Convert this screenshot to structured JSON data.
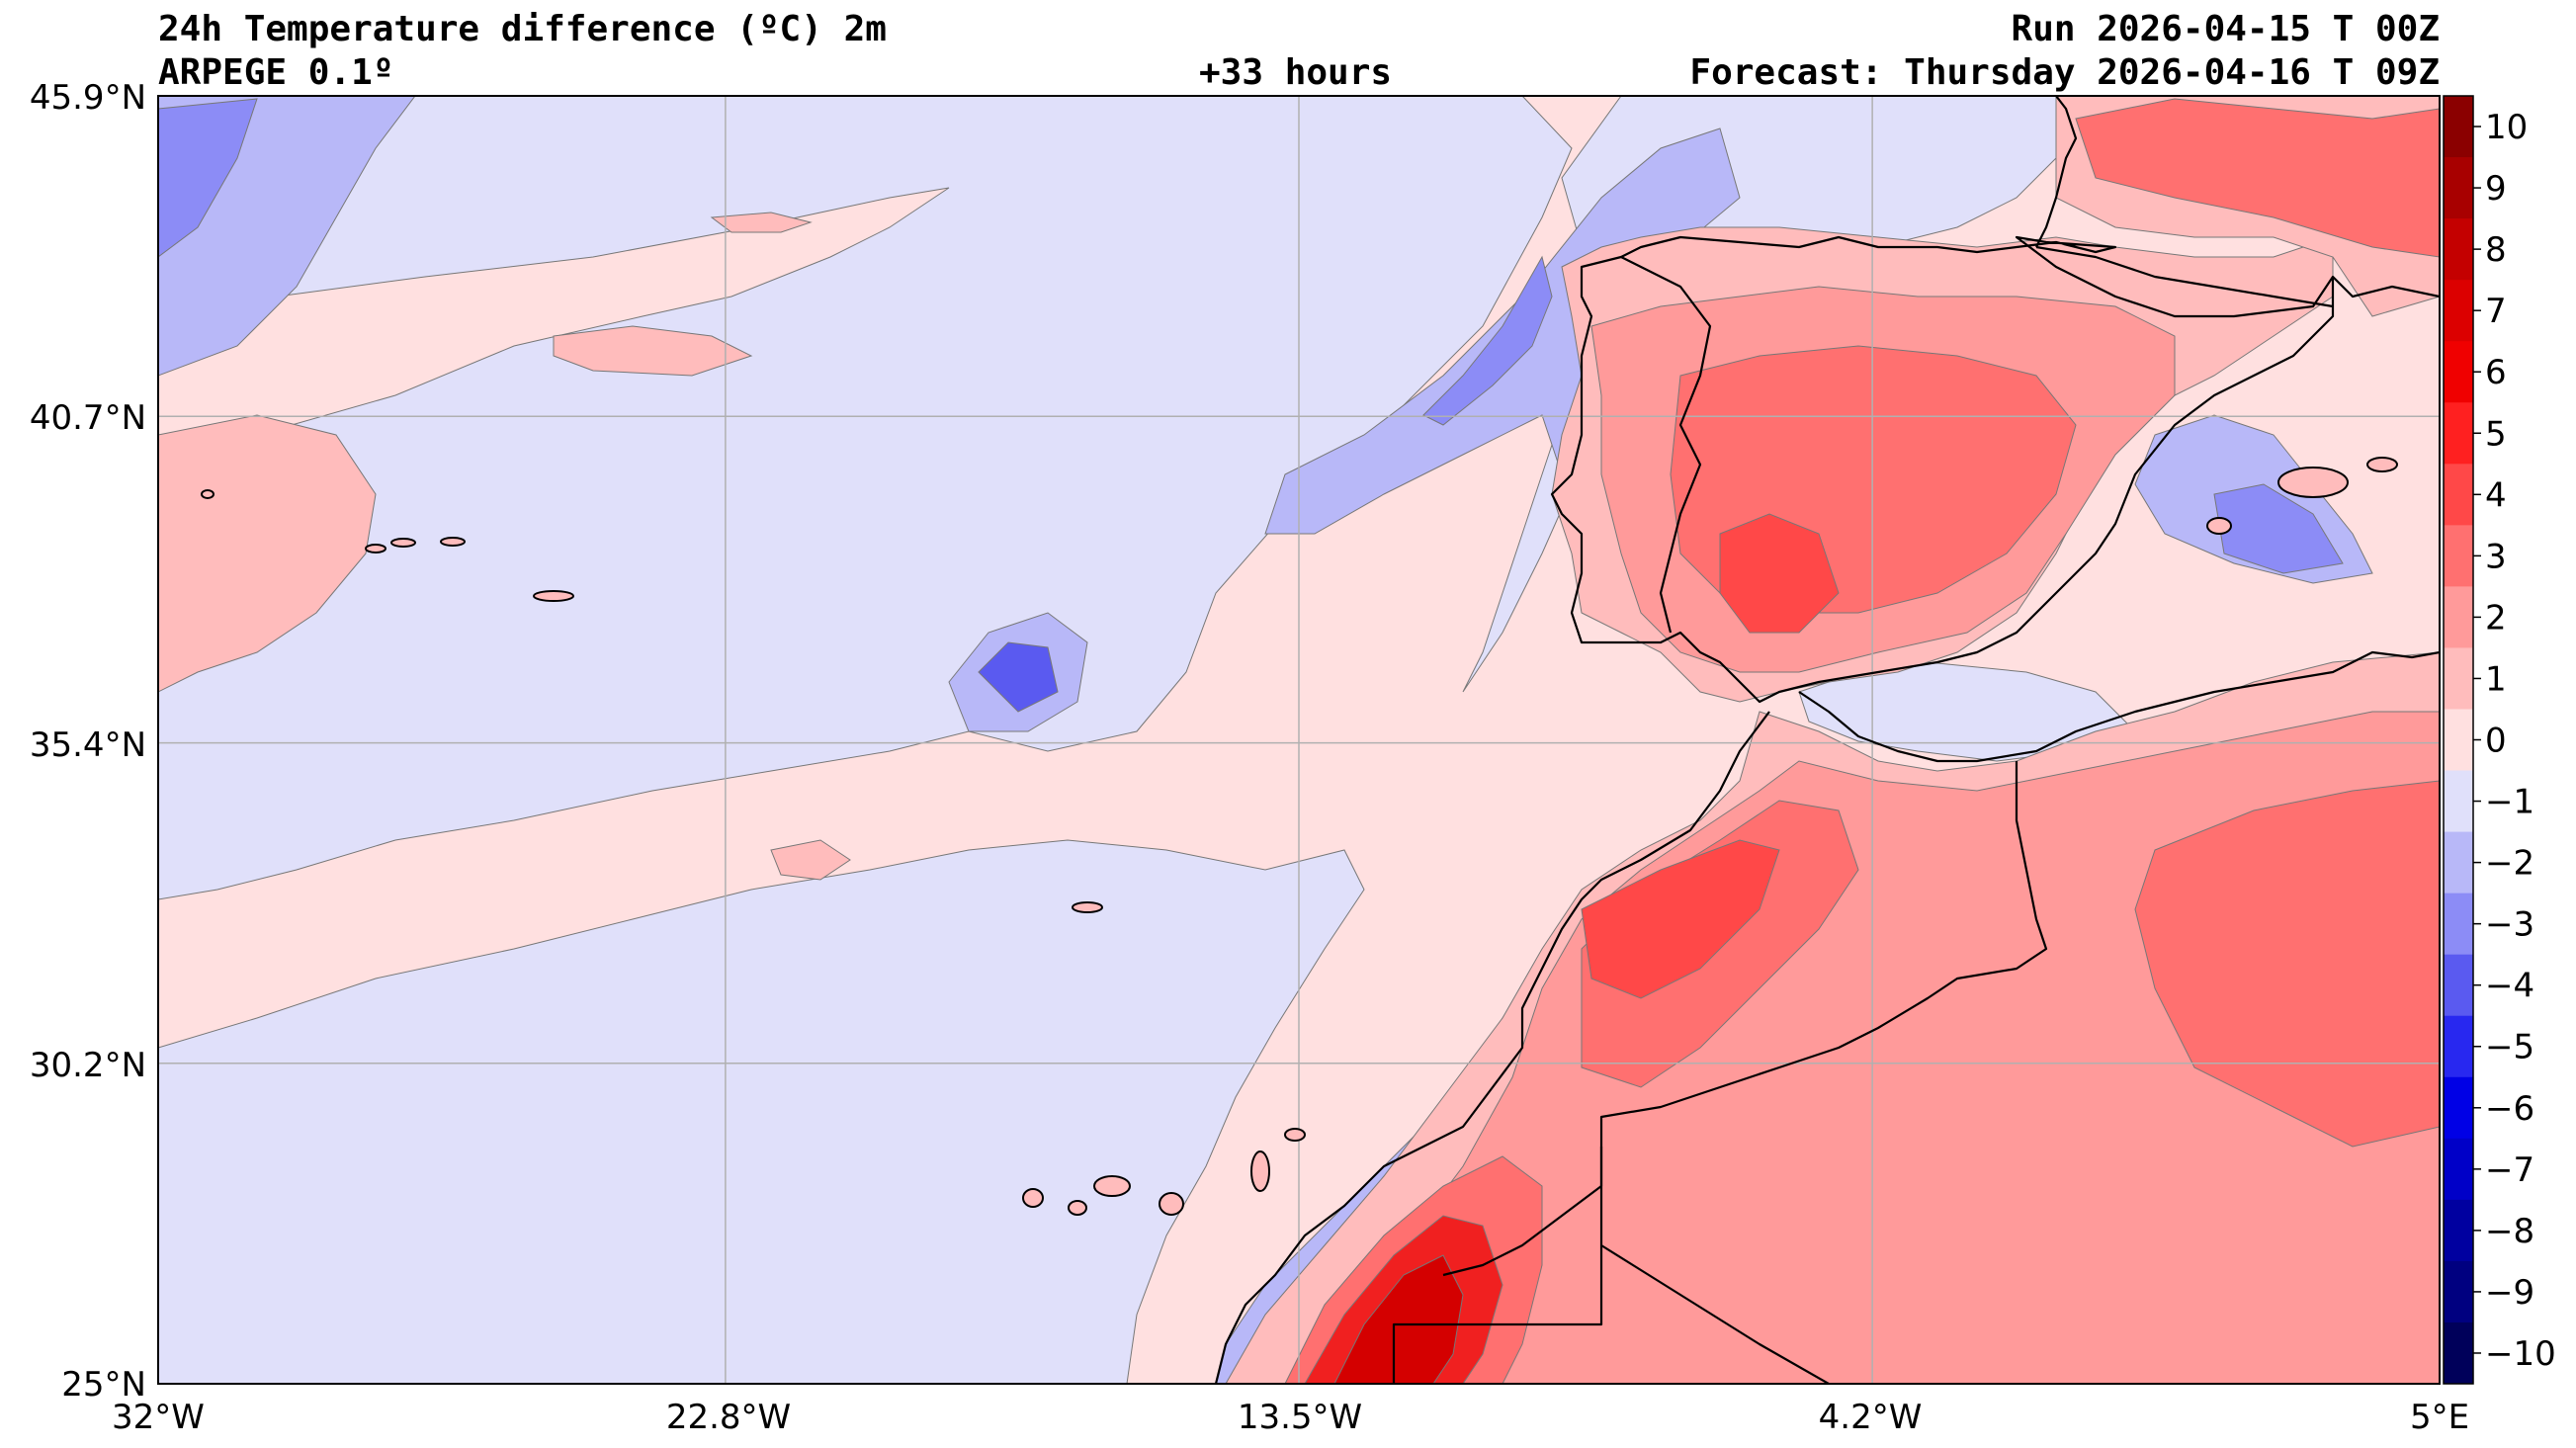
{
  "header": {
    "title": "24h Temperature difference (ºC) 2m",
    "model": "ARPEGE 0.1º",
    "lead_time": "+33 hours",
    "run": "Run 2026-04-15 T 00Z",
    "forecast": "Forecast: Thursday 2026-04-16 T 09Z"
  },
  "axes": {
    "lat_labels": [
      "45.9°N",
      "40.7°N",
      "35.4°N",
      "30.2°N",
      "25°N"
    ],
    "lon_labels": [
      "32°W",
      "22.8°W",
      "13.5°W",
      "4.2°W",
      "5°E"
    ],
    "lat_range": [
      25,
      45.9
    ],
    "lon_range": [
      -32,
      5
    ],
    "grid": true
  },
  "colorbar": {
    "labels": [
      "10",
      "9",
      "8",
      "7",
      "6",
      "5",
      "4",
      "3",
      "2",
      "1",
      "0",
      "−1",
      "−2",
      "−3",
      "−4",
      "−5",
      "−6",
      "−7",
      "−8",
      "−9",
      "−10"
    ],
    "colors": [
      "#8b0000",
      "#a80000",
      "#c40000",
      "#dc0000",
      "#f00000",
      "#ff2020",
      "#ff4848",
      "#ff7070",
      "#ff9a9a",
      "#ffbcbc",
      "#ffe0e0",
      "#e0e0fa",
      "#b8b8f8",
      "#8c8cf6",
      "#5a5af0",
      "#2828f0",
      "#0000e6",
      "#0000c8",
      "#0000a0",
      "#000080",
      "#00005a"
    ]
  },
  "map": {
    "colors": {
      "plus0": "#ffe0e0",
      "plus1": "#ffbcbc",
      "plus2": "#ff9a9a",
      "plus3": "#ff7070",
      "plus4": "#ff4848",
      "plus5": "#f02020",
      "plus7": "#d40000",
      "plus9": "#a00000",
      "minus0": "#e0e0fa",
      "minus1": "#b8b8f8",
      "minus2": "#8c8cf6",
      "minus3": "#5a5af0",
      "coast": "#000000",
      "grid": "#b0b0b0"
    }
  }
}
